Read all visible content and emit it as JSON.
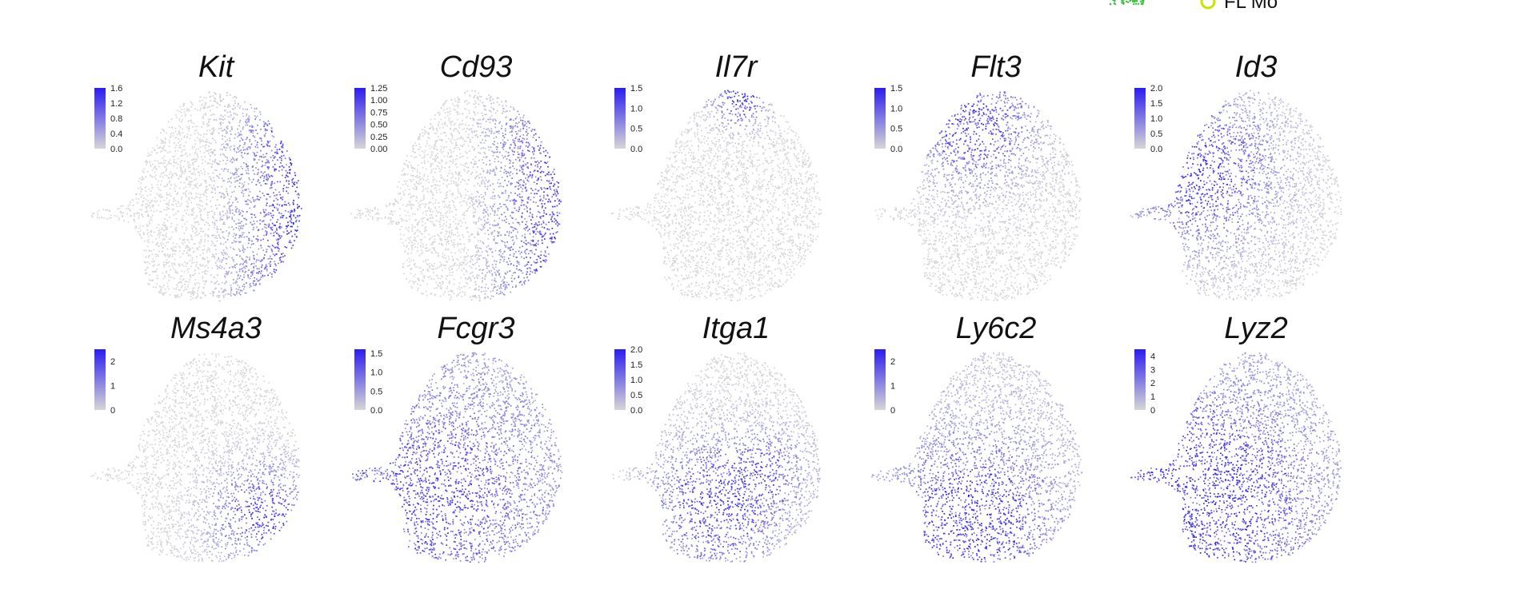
{
  "legend_fragment": {
    "label": "FL Mo",
    "marker_color": "#c7e300",
    "blob_color": "#3fbf3f"
  },
  "colors": {
    "low": "#d6d6d6",
    "high": "#2b1df0"
  },
  "chart_data": [
    {
      "type": "scatter",
      "gene": "Kit",
      "ticks": [
        "1.6",
        "1.2",
        "0.8",
        "0.4",
        "0.0"
      ],
      "cmax": 1.6,
      "hotspot": "right"
    },
    {
      "type": "scatter",
      "gene": "Cd93",
      "ticks": [
        "1.25",
        "1.00",
        "0.75",
        "0.50",
        "0.25",
        "0.00"
      ],
      "cmax": 1.25,
      "hotspot": "right"
    },
    {
      "type": "scatter",
      "gene": "Il7r",
      "ticks": [
        "1.5",
        "1.0",
        "0.5",
        "0.0"
      ],
      "cmax": 1.5,
      "hotspot": "top"
    },
    {
      "type": "scatter",
      "gene": "Flt3",
      "ticks": [
        "1.5",
        "1.0",
        "0.5",
        "0.0"
      ],
      "cmax": 1.5,
      "hotspot": "top-left"
    },
    {
      "type": "scatter",
      "gene": "Id3",
      "ticks": [
        "2.0",
        "1.5",
        "1.0",
        "0.5",
        "0.0"
      ],
      "cmax": 2.0,
      "hotspot": "left"
    },
    {
      "type": "scatter",
      "gene": "Ms4a3",
      "ticks": [
        "2",
        "1",
        "0"
      ],
      "cmax": 2.5,
      "hotspot": "bottom-right"
    },
    {
      "type": "scatter",
      "gene": "Fcgr3",
      "ticks": [
        "1.5",
        "1.0",
        "0.5",
        "0.0"
      ],
      "cmax": 1.6,
      "hotspot": "broad-bottom"
    },
    {
      "type": "scatter",
      "gene": "Itga1",
      "ticks": [
        "2.0",
        "1.5",
        "1.0",
        "0.5",
        "0.0"
      ],
      "cmax": 2.0,
      "hotspot": "bottom-center"
    },
    {
      "type": "scatter",
      "gene": "Ly6c2",
      "ticks": [
        "2",
        "1",
        "0"
      ],
      "cmax": 2.5,
      "hotspot": "bottom"
    },
    {
      "type": "scatter",
      "gene": "Lyz2",
      "ticks": [
        "4",
        "3",
        "2",
        "1",
        "0"
      ],
      "cmax": 4.5,
      "hotspot": "bottom-left"
    }
  ]
}
